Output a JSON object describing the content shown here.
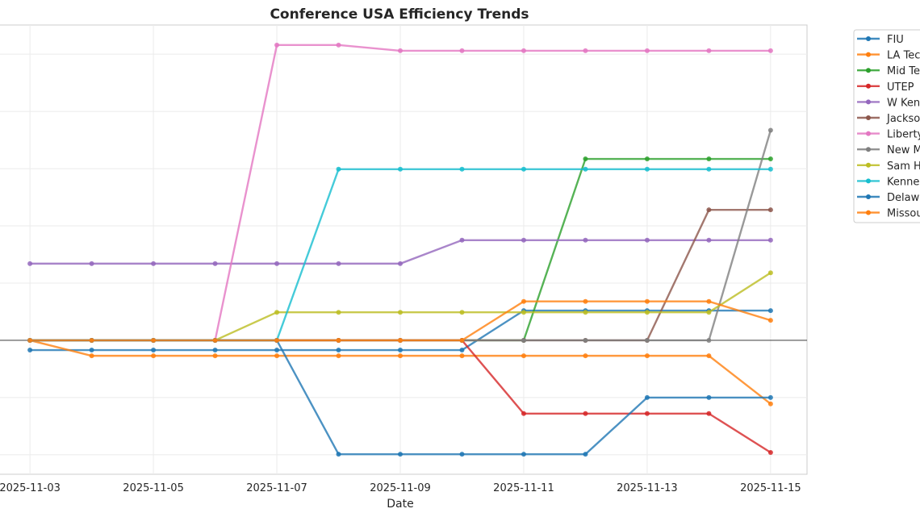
{
  "chart_data": {
    "type": "line",
    "title": "Conference USA Efficiency Trends",
    "xlabel": "Date",
    "ylabel": "",
    "x": [
      "2025-11-03",
      "2025-11-04",
      "2025-11-05",
      "2025-11-06",
      "2025-11-07",
      "2025-11-08",
      "2025-11-09",
      "2025-11-10",
      "2025-11-11",
      "2025-11-12",
      "2025-11-13",
      "2025-11-14",
      "2025-11-15"
    ],
    "x_tick_labels": [
      "2025-11-03",
      "2025-11-05",
      "2025-11-07",
      "2025-11-09",
      "2025-11-11",
      "2025-11-13",
      "2025-11-15"
    ],
    "ylim": [
      -2.34,
      5.51
    ],
    "xlim_days_padding": 0.59,
    "grid": true,
    "zero_line": true,
    "legend_position": "outside-right",
    "series": [
      {
        "name": "FIU",
        "color": "#1f77b4",
        "values": [
          -0.17,
          -0.17,
          -0.17,
          -0.17,
          -0.17,
          -0.17,
          -0.17,
          -0.17,
          0.52,
          0.52,
          0.52,
          0.52,
          0.52
        ]
      },
      {
        "name": "LA Tech",
        "color": "#ff7f0e",
        "values": [
          0,
          -0.27,
          -0.27,
          -0.27,
          -0.27,
          -0.27,
          -0.27,
          -0.27,
          -0.27,
          -0.27,
          -0.27,
          -0.27,
          -1.11
        ]
      },
      {
        "name": "Mid Tenn",
        "color": "#2ca02c",
        "values": [
          0,
          0,
          0,
          0,
          0,
          0,
          0,
          0,
          0,
          3.17,
          3.17,
          3.17,
          3.17
        ]
      },
      {
        "name": "UTEP",
        "color": "#d62728",
        "values": [
          0,
          0,
          0,
          0,
          0,
          0,
          0,
          0,
          -1.28,
          -1.28,
          -1.28,
          -1.28,
          -1.96
        ]
      },
      {
        "name": "W Kentucky",
        "color": "#9467bd",
        "values": [
          1.34,
          1.34,
          1.34,
          1.34,
          1.34,
          1.34,
          1.34,
          1.75,
          1.75,
          1.75,
          1.75,
          1.75,
          1.75
        ]
      },
      {
        "name": "Jacksonville St",
        "color": "#8c564b",
        "values": [
          0,
          0,
          0,
          0,
          0,
          0,
          0,
          0,
          0,
          0,
          0,
          2.28,
          2.28
        ]
      },
      {
        "name": "Liberty",
        "color": "#e377c2",
        "values": [
          0,
          0,
          0,
          0,
          5.16,
          5.16,
          5.06,
          5.06,
          5.06,
          5.06,
          5.06,
          5.06,
          5.06
        ]
      },
      {
        "name": "New Mexico St",
        "color": "#7f7f7f",
        "values": [
          0,
          0,
          0,
          0,
          0,
          0,
          0,
          0,
          0,
          0,
          0,
          0,
          3.67
        ]
      },
      {
        "name": "Sam Houston",
        "color": "#bcbd22",
        "values": [
          0,
          0,
          0,
          0,
          0.49,
          0.49,
          0.49,
          0.49,
          0.49,
          0.49,
          0.49,
          0.49,
          1.18
        ]
      },
      {
        "name": "Kennesaw St",
        "color": "#17becf",
        "values": [
          0,
          0,
          0,
          0,
          0,
          2.99,
          2.99,
          2.99,
          2.99,
          2.99,
          2.99,
          2.99,
          2.99
        ]
      },
      {
        "name": "Delaware",
        "color": "#1f77b4",
        "values": [
          0,
          0,
          0,
          0,
          0,
          -1.99,
          -1.99,
          -1.99,
          -1.99,
          -1.99,
          -1.0,
          -1.0,
          -1.0
        ]
      },
      {
        "name": "Missouri St",
        "color": "#ff7f0e",
        "values": [
          0,
          0,
          0,
          0,
          0,
          0,
          0,
          0,
          0.68,
          0.68,
          0.68,
          0.68,
          0.35
        ]
      }
    ]
  }
}
